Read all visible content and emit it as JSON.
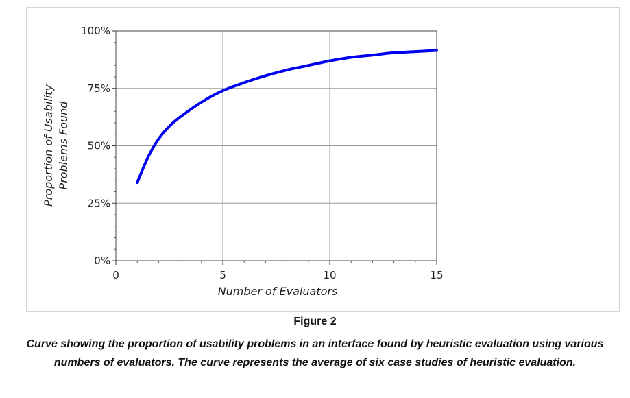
{
  "chart_data": {
    "type": "line",
    "title": "",
    "xlabel": "Number of Evaluators",
    "ylabel": [
      "Proportion of Usability",
      "Problems Found"
    ],
    "xlim": [
      0,
      15
    ],
    "ylim": [
      0,
      100
    ],
    "x_ticks": [
      "0",
      "5",
      "10",
      "15"
    ],
    "y_ticks": [
      "0%",
      "25%",
      "50%",
      "75%",
      "100%"
    ],
    "grid": true,
    "legend": "none",
    "series": [
      {
        "color": "#0000ee",
        "x": [
          1,
          1.5,
          2,
          2.5,
          3,
          4,
          5,
          6,
          7,
          8,
          9,
          10,
          11,
          12,
          13,
          14,
          15
        ],
        "y": [
          34,
          45,
          53,
          58.5,
          62.5,
          69,
          74,
          77.5,
          80.5,
          83,
          85,
          87,
          88.5,
          89.5,
          90.5,
          91,
          91.5
        ]
      }
    ]
  },
  "figure": {
    "label": "Figure 2",
    "caption": "Curve showing the proportion of usability problems in an interface found by heuristic evaluation using various numbers of evaluators. The curve represents the average of six case studies of heuristic evaluation."
  }
}
